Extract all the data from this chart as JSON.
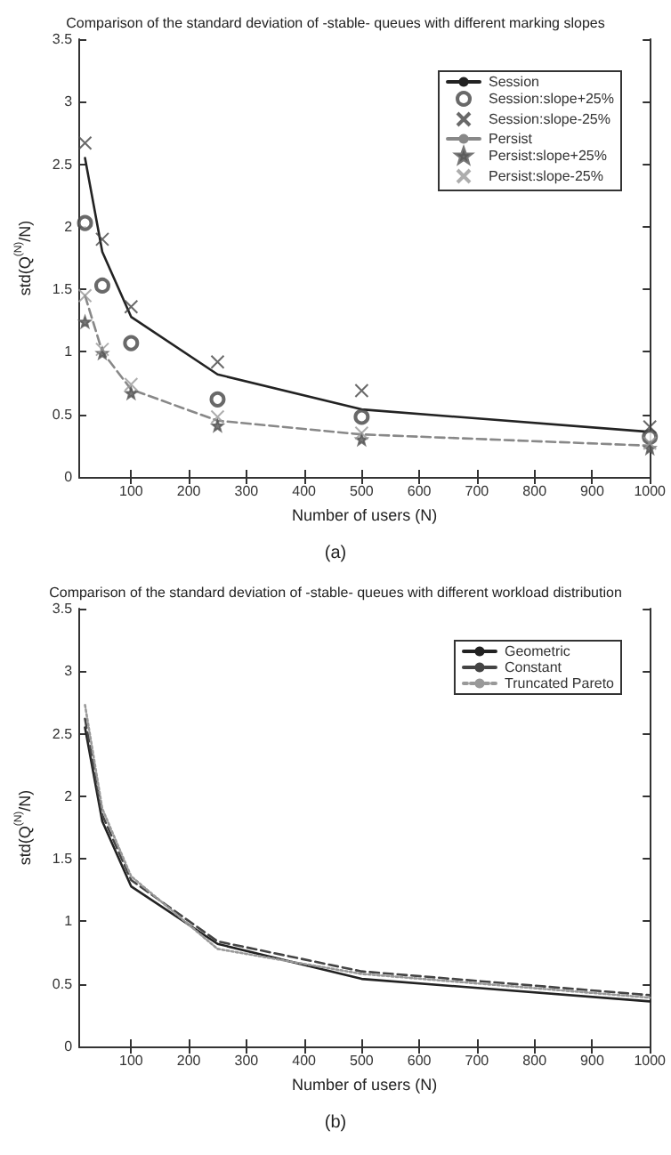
{
  "chart_data": [
    {
      "type": "line",
      "title": "Comparison of the standard deviation of -stable- queues with different marking slopes",
      "xlabel": "Number of users (N)",
      "ylabel": "std(Q$^{(N)}$/N)",
      "annotations": [
        "(a)"
      ],
      "x": [
        20,
        50,
        100,
        250,
        500,
        1000
      ],
      "xlim": [
        10,
        1000
      ],
      "xticks": [
        100,
        200,
        300,
        400,
        500,
        600,
        700,
        800,
        900,
        1000
      ],
      "ylim": [
        0,
        3.5
      ],
      "yticks": [
        0,
        0.5,
        1,
        1.5,
        2,
        2.5,
        3,
        3.5
      ],
      "grid": false,
      "legend": "top right",
      "series": [
        {
          "name": "Session",
          "color": "#222222",
          "line_style": "solid",
          "marker": "none",
          "values": [
            2.55,
            1.8,
            1.28,
            0.82,
            0.54,
            0.36
          ]
        },
        {
          "name": "Session:slope+25%",
          "type": "scatter",
          "color": "#444444",
          "marker": "circle",
          "values": [
            2.03,
            1.53,
            1.07,
            0.62,
            0.48,
            0.32
          ]
        },
        {
          "name": "Session:slope-25%",
          "type": "scatter",
          "color": "#444444",
          "marker": "cross",
          "values": [
            2.67,
            1.9,
            1.36,
            0.92,
            0.69,
            0.4
          ]
        },
        {
          "name": "Persist",
          "color": "#888888",
          "line_style": "dashed",
          "marker": "none",
          "values": [
            1.45,
            1.0,
            0.7,
            0.45,
            0.34,
            0.25
          ]
        },
        {
          "name": "Persist:slope+25%",
          "type": "scatter",
          "color": "#555555",
          "marker": "star",
          "values": [
            1.24,
            0.99,
            0.67,
            0.41,
            0.3,
            0.23
          ]
        },
        {
          "name": "Persist:slope-25%",
          "type": "scatter",
          "color": "#999999",
          "marker": "cross",
          "values": [
            1.45,
            1.02,
            0.74,
            0.48,
            0.35,
            0.27
          ]
        }
      ]
    },
    {
      "type": "line",
      "title": "Comparison of the standard deviation of -stable- queues with different workload distribution",
      "xlabel": "Number of users (N)",
      "ylabel": "std(Q$^{(N)}$/N)",
      "annotations": [
        "(b)"
      ],
      "x": [
        20,
        50,
        100,
        250,
        500,
        1000
      ],
      "xlim": [
        10,
        1000
      ],
      "xticks": [
        100,
        200,
        300,
        400,
        500,
        600,
        700,
        800,
        900,
        1000
      ],
      "ylim": [
        0,
        3.5
      ],
      "yticks": [
        0,
        0.5,
        1,
        1.5,
        2,
        2.5,
        3,
        3.5
      ],
      "grid": false,
      "legend": "top right",
      "series": [
        {
          "name": "Geometric",
          "color": "#222222",
          "line_style": "solid",
          "values": [
            2.55,
            1.8,
            1.28,
            0.82,
            0.54,
            0.36
          ]
        },
        {
          "name": "Constant",
          "color": "#444444",
          "line_style": "dashed",
          "values": [
            2.62,
            1.85,
            1.33,
            0.84,
            0.6,
            0.41
          ]
        },
        {
          "name": "Truncated Pareto",
          "color": "#999999",
          "line_style": "dotted",
          "values": [
            2.73,
            1.9,
            1.36,
            0.78,
            0.58,
            0.39
          ]
        }
      ]
    }
  ]
}
